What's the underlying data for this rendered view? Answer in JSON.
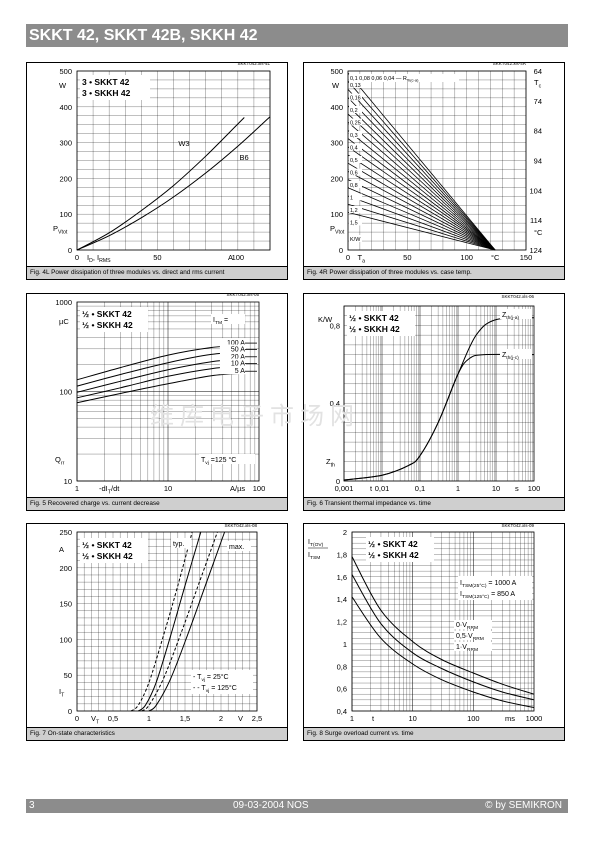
{
  "header": {
    "title": "SKKT 42, SKKT 42B, SKKH 42"
  },
  "watermark": "维库电子市场网",
  "footer": {
    "page": "3",
    "date": "09-03-2004  NOS",
    "copyright": "© by SEMIKRON"
  },
  "charts": [
    {
      "id": "fig4l",
      "code": "SKKT042.xls-4L",
      "caption": "Fig. 4L Power dissipation of three modules vs. direct and rms current",
      "legend": [
        "3 • SKKT 42",
        "3 • SKKH 42"
      ],
      "ylabel": "P",
      "ylabel_sub": "Vtot",
      "yunit": "W",
      "xlabel_parts": [
        "I",
        "D",
        ", I",
        "RMS"
      ],
      "xunit": "A",
      "chart_data": {
        "type": "line",
        "xlim": [
          0,
          120
        ],
        "ylim": [
          0,
          500
        ],
        "xticks": [
          0,
          50,
          100
        ],
        "yticks": [
          0,
          100,
          200,
          300,
          400,
          500
        ],
        "series": [
          {
            "name": "W3",
            "x": [
              0,
              20,
              40,
              60,
              80,
              100,
              104
            ],
            "y": [
              0,
              48,
              110,
              180,
              262,
              352,
              370
            ]
          },
          {
            "name": "B6",
            "x": [
              0,
              20,
              40,
              60,
              80,
              100,
              120
            ],
            "y": [
              0,
              40,
              90,
              148,
              215,
              290,
              372
            ]
          }
        ]
      }
    },
    {
      "id": "fig4r",
      "code": "SKKT042.xls-4R",
      "caption": "Fig. 4R Power dissipation of three modules vs. case temp.",
      "ylabel": "P",
      "ylabel_sub": "Vtot",
      "yunit": "W",
      "xlabel": "T",
      "xlabel_sub": "a",
      "xunit": "°C",
      "r_header": "R",
      "r_header_sub": "th(c-a)",
      "r_header_values": "0,1 0,08 0,06 0,04 —",
      "r_unit": "K/W",
      "tc_label": "T",
      "tc_label_sub": "c",
      "tc_unit": "°C",
      "chart_data": {
        "type": "line",
        "xlim": [
          0,
          150
        ],
        "ylim": [
          0,
          500
        ],
        "xticks": [
          0,
          50,
          100,
          150
        ],
        "yticks": [
          0,
          100,
          200,
          300,
          400,
          500
        ],
        "right_ticks": [
          "64",
          "74",
          "84",
          "94",
          "104",
          "114",
          "124"
        ],
        "resistance_labels": [
          "0,13",
          "0,16",
          "0,2",
          "0,25",
          "0,3",
          "0,4",
          "0,5",
          "0,6",
          "0,8",
          "1",
          "1,2",
          "1,5"
        ],
        "convergence_x": 124
      }
    },
    {
      "id": "fig5",
      "code": "SKKT042.xls-05",
      "caption": "Fig. 5 Recovered charge vs. current decrease",
      "legend": [
        "½ • SKKT 42",
        "½ • SKKH 42"
      ],
      "ylabel": "Q",
      "ylabel_sub": "rr",
      "yunit": "µC",
      "xlabel": "-dI",
      "xlabel_sub": "T",
      "xlabel_tail": "/dt",
      "xunit": "A/µs",
      "param": "I",
      "param_sub": "TM",
      "param_tail": " =",
      "temp_label": "T",
      "temp_sub": "vj",
      "temp_tail": " =125 °C",
      "chart_data": {
        "type": "line",
        "xscale": "log",
        "yscale": "log",
        "xlim": [
          1,
          100
        ],
        "ylim": [
          10,
          1000
        ],
        "xticks": [
          "1",
          "10",
          "100"
        ],
        "yticks": [
          "10",
          "100",
          "1000"
        ],
        "series": [
          {
            "name": "100 A",
            "x": [
              1,
              3,
              10,
              30,
              70
            ],
            "y": [
              135,
              185,
              255,
              310,
              330
            ]
          },
          {
            "name": "50 A",
            "x": [
              1,
              3,
              10,
              30,
              70
            ],
            "y": [
              115,
              155,
              210,
              260,
              280
            ]
          },
          {
            "name": "20 A",
            "x": [
              1,
              3,
              10,
              30,
              70
            ],
            "y": [
              98,
              130,
              175,
              215,
              232
            ]
          },
          {
            "name": "10 A",
            "x": [
              1,
              3,
              10,
              30,
              70
            ],
            "y": [
              85,
              110,
              148,
              180,
              195
            ]
          },
          {
            "name": "5 A",
            "x": [
              1,
              3,
              10,
              30,
              70
            ],
            "y": [
              75,
              95,
              122,
              150,
              160
            ]
          }
        ]
      }
    },
    {
      "id": "fig6",
      "code": "SKKT042.xls-06",
      "caption": "Fig. 6 Transient thermal impedance vs. time",
      "legend": [
        "½ • SKKT 42",
        "½ • SKKH 42"
      ],
      "ylabel": "Z",
      "ylabel_sub": "th",
      "yunit": "K/W",
      "xlabel": "t",
      "xunit": "s",
      "chart_data": {
        "type": "line",
        "xscale": "log",
        "xlim": [
          0.001,
          100
        ],
        "ylim": [
          0,
          0.9
        ],
        "xticks": [
          "0,001",
          "0,01",
          "0,1",
          "1",
          "10",
          "100"
        ],
        "yticks": [
          "0",
          "0,4",
          "0,8"
        ],
        "series": [
          {
            "name": "Zth(j-a)",
            "label": "Z",
            "label_sub": "th(j-a)",
            "x": [
              0.001,
              0.01,
              0.05,
              0.1,
              0.3,
              1,
              3,
              10,
              100
            ],
            "y": [
              0.005,
              0.03,
              0.08,
              0.13,
              0.3,
              0.55,
              0.75,
              0.83,
              0.84
            ]
          },
          {
            "name": "Zth(j-c)",
            "label": "Z",
            "label_sub": "th(j-c)",
            "x": [
              0.001,
              0.01,
              0.05,
              0.1,
              0.3,
              1,
              2,
              5,
              100
            ],
            "y": [
              0.005,
              0.03,
              0.08,
              0.13,
              0.3,
              0.55,
              0.63,
              0.65,
              0.65
            ]
          }
        ]
      }
    },
    {
      "id": "fig7",
      "code": "SKKT042.xls-08",
      "caption": "Fig. 7 On-state characteristics",
      "legend": [
        "½ • SKKT 42",
        "½ • SKKH 42"
      ],
      "ylabel": "I",
      "ylabel_sub": "T",
      "yunit": "A",
      "xlabel": "V",
      "xlabel_sub": "T",
      "xunit": "V",
      "typ_label": "typ.",
      "max_label": "max.",
      "temps": [
        {
          "label": "- T",
          "sub": "vj",
          "tail": " =  25°C"
        },
        {
          "label": "- - T",
          "sub": "vj",
          "tail": " = 125°C"
        }
      ],
      "chart_data": {
        "type": "line",
        "xlim": [
          0,
          2.5
        ],
        "ylim": [
          0,
          250
        ],
        "xticks": [
          "0",
          "0,5",
          "1",
          "1,5",
          "2",
          "2,5"
        ],
        "yticks": [
          "0",
          "50",
          "100",
          "150",
          "200",
          "250"
        ],
        "series": [
          {
            "name": "typ. 125°C",
            "x": [
              0.75,
              0.85,
              1.0,
              1.2,
              1.4,
              1.6
            ],
            "y": [
              0,
              8,
              40,
              105,
              175,
              250
            ]
          },
          {
            "name": "typ. 25°C",
            "x": [
              0.85,
              0.95,
              1.1,
              1.3,
              1.5,
              1.72
            ],
            "y": [
              0,
              8,
              40,
              105,
              175,
              250
            ]
          },
          {
            "name": "max. 125°C",
            "x": [
              0.9,
              1.0,
              1.2,
              1.45,
              1.7,
              1.95
            ],
            "y": [
              0,
              8,
              45,
              110,
              180,
              250
            ]
          },
          {
            "name": "max. 25°C",
            "x": [
              1.0,
              1.1,
              1.3,
              1.55,
              1.8,
              2.05
            ],
            "y": [
              0,
              8,
              45,
              110,
              180,
              250
            ]
          }
        ]
      }
    },
    {
      "id": "fig8",
      "code": "SKKT042.xls-09",
      "caption": "Fig. 8 Surge overload current vs. time",
      "legend": [
        "½ • SKKT 42",
        "½ • SKKH 42"
      ],
      "ylabel_top": "I",
      "ylabel_top_sub": "T(OV)",
      "ylabel_bottom": "I",
      "ylabel_bottom_sub": "TSM",
      "xlabel": "t",
      "xunit": "ms",
      "itsm": [
        {
          "label": "I",
          "sub": "TSM(25°C)",
          "value": " = 1000 A"
        },
        {
          "label": "I",
          "sub": "TSM(125°C)",
          "value": " =   850 A"
        }
      ],
      "chart_data": {
        "type": "line",
        "xscale": "log",
        "xlim": [
          1,
          1000
        ],
        "ylim": [
          0.4,
          2
        ],
        "xticks": [
          "1",
          "10",
          "100",
          "1000"
        ],
        "yticks": [
          "0,4",
          "0,6",
          "0,8",
          "1",
          "1,2",
          "1,4",
          "1,6",
          "1,8",
          "2"
        ],
        "series": [
          {
            "name": "0·V",
            "label": "0·V",
            "label_sub": "RRM",
            "x": [
              1,
              3,
              10,
              30,
              100,
              300,
              1000
            ],
            "y": [
              1.78,
              1.3,
              1.02,
              0.86,
              0.74,
              0.64,
              0.55
            ]
          },
          {
            "name": "0,5·V",
            "label": "0,5·V",
            "label_sub": "RRM",
            "x": [
              1,
              3,
              10,
              30,
              100,
              300,
              1000
            ],
            "y": [
              1.62,
              1.18,
              0.92,
              0.78,
              0.66,
              0.57,
              0.5
            ]
          },
          {
            "name": "1·V",
            "label": "1·V",
            "label_sub": "RRM",
            "x": [
              1,
              3,
              10,
              30,
              100,
              300,
              1000
            ],
            "y": [
              1.42,
              1.05,
              0.82,
              0.68,
              0.57,
              0.49,
              0.43
            ]
          }
        ]
      }
    }
  ]
}
